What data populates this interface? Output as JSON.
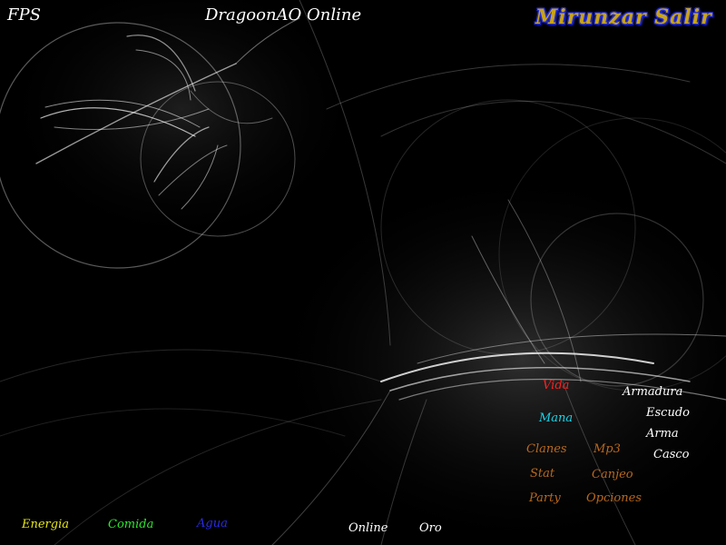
{
  "header": {
    "fps_label": "FPS",
    "title": "DragoonAO Online",
    "player_name": "Mirunzar Salir"
  },
  "stats": {
    "vida": "Vida",
    "mana": "Mana",
    "armadura": "Armadura",
    "escudo": "Escudo",
    "arma": "Arma",
    "casco": "Casco"
  },
  "menu": {
    "clanes": "Clanes",
    "mp3": "Mp3",
    "stat": "Stat",
    "canjeo": "Canjeo",
    "party": "Party",
    "opciones": "Opciones"
  },
  "bottom": {
    "energia": "Energia",
    "comida": "Comida",
    "agua": "Agua",
    "online": "Online",
    "oro": "Oro"
  },
  "colors": {
    "vida": "#ff2020",
    "mana": "#19d3e6",
    "white": "#ffffff",
    "menu": "#b8681e",
    "energia": "#e6e61a",
    "comida": "#2ee62e",
    "agua": "#2a2ae6",
    "player_fill": "#c9a31a",
    "player_outline": "#2630d8"
  }
}
